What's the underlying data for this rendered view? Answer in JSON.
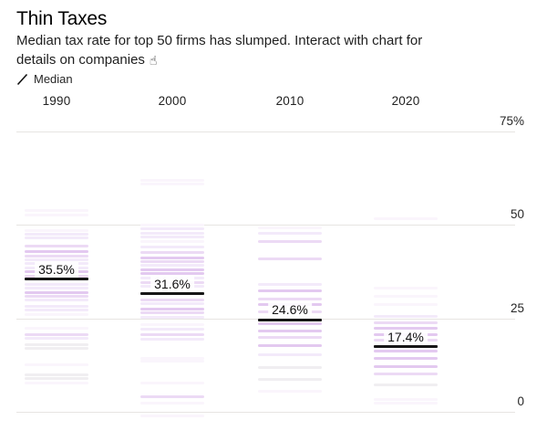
{
  "header": {
    "title": "Thin Taxes",
    "subtitle_line1": "Median tax rate for top 50 firms has slumped. Interact with chart for",
    "subtitle_line2": "details on companies",
    "pointer_icon_glyph": "☝"
  },
  "legend": {
    "symbol": "median-slash-icon",
    "label": "Median"
  },
  "chart_data": {
    "type": "strip",
    "title": "Thin Taxes",
    "subtitle": "Median tax rate for top 50 firms has slumped. Interact with chart for details on companies",
    "unit": "%",
    "ylim": [
      0,
      75
    ],
    "grid": true,
    "legend_position": "top-left",
    "axis_ticks": [
      {
        "label": "75%",
        "value": 75
      },
      {
        "label": "50",
        "value": 50
      },
      {
        "label": "25",
        "value": 25
      },
      {
        "label": "0",
        "value": 0
      }
    ],
    "columns": [
      {
        "year": "1990",
        "median": 35.5,
        "median_label": "35.5%",
        "strips": [
          [
            53.8,
            "faint"
          ],
          [
            52.6,
            "faint"
          ],
          [
            48.5,
            "faint"
          ],
          [
            47.6,
            "light"
          ],
          [
            46.6,
            "light"
          ],
          [
            44.4,
            "medium"
          ],
          [
            43.0,
            "strong"
          ],
          [
            41.7,
            "medium"
          ],
          [
            40.8,
            "light"
          ],
          [
            39.8,
            "light"
          ],
          [
            38.6,
            "light"
          ],
          [
            37.6,
            "strong"
          ],
          [
            36.4,
            "medium"
          ],
          [
            34.0,
            "light"
          ],
          [
            33.0,
            "light"
          ],
          [
            31.8,
            "strong"
          ],
          [
            30.8,
            "medium"
          ],
          [
            29.9,
            "light"
          ],
          [
            28.2,
            "light"
          ],
          [
            27.2,
            "light"
          ],
          [
            26.0,
            "faint"
          ],
          [
            22.3,
            "faint"
          ],
          [
            20.6,
            "medium"
          ],
          [
            19.7,
            "light"
          ],
          [
            18.0,
            "gray"
          ],
          [
            17.0,
            "gray"
          ],
          [
            12.6,
            "faint"
          ],
          [
            10.0,
            "gray"
          ],
          [
            9.0,
            "gray"
          ],
          [
            7.8,
            "faint"
          ]
        ]
      },
      {
        "year": "2000",
        "median": 31.6,
        "median_label": "31.6%",
        "strips": [
          [
            62.0,
            "faint"
          ],
          [
            60.9,
            "faint"
          ],
          [
            50.0,
            "faint"
          ],
          [
            49.0,
            "light"
          ],
          [
            47.8,
            "light"
          ],
          [
            46.8,
            "light"
          ],
          [
            45.6,
            "faint"
          ],
          [
            44.2,
            "light"
          ],
          [
            42.7,
            "medium"
          ],
          [
            41.3,
            "strong"
          ],
          [
            40.3,
            "medium"
          ],
          [
            39.3,
            "light"
          ],
          [
            38.1,
            "strong"
          ],
          [
            37.1,
            "strong"
          ],
          [
            35.9,
            "light"
          ],
          [
            34.7,
            "medium"
          ],
          [
            33.5,
            "light"
          ],
          [
            29.9,
            "medium"
          ],
          [
            28.9,
            "light"
          ],
          [
            27.4,
            "strong"
          ],
          [
            26.5,
            "medium"
          ],
          [
            25.2,
            "light"
          ],
          [
            23.3,
            "faint"
          ],
          [
            22.1,
            "light"
          ],
          [
            20.6,
            "medium"
          ],
          [
            19.4,
            "light"
          ],
          [
            14.3,
            "faint"
          ],
          [
            13.6,
            "faint"
          ],
          [
            7.8,
            "faint"
          ],
          [
            4.1,
            "medium"
          ],
          [
            2.4,
            "faint"
          ],
          [
            -1.0,
            "faint"
          ]
        ]
      },
      {
        "year": "2010",
        "median": 24.6,
        "median_label": "24.6%",
        "strips": [
          [
            49.3,
            "faint"
          ],
          [
            47.8,
            "light"
          ],
          [
            45.6,
            "medium"
          ],
          [
            41.0,
            "medium"
          ],
          [
            34.0,
            "light"
          ],
          [
            32.3,
            "strong"
          ],
          [
            30.3,
            "medium"
          ],
          [
            28.6,
            "strong"
          ],
          [
            26.7,
            "medium"
          ],
          [
            23.5,
            "strong"
          ],
          [
            21.6,
            "strong"
          ],
          [
            19.9,
            "medium"
          ],
          [
            17.7,
            "strong"
          ],
          [
            15.3,
            "light"
          ],
          [
            11.9,
            "gray"
          ],
          [
            8.7,
            "gray"
          ],
          [
            5.6,
            "faint"
          ]
        ]
      },
      {
        "year": "2020",
        "median": 17.4,
        "median_label": "17.4%",
        "strips": [
          [
            51.7,
            "faint"
          ],
          [
            33.0,
            "faint"
          ],
          [
            30.8,
            "faint"
          ],
          [
            28.6,
            "faint"
          ],
          [
            25.5,
            "light"
          ],
          [
            23.8,
            "medium"
          ],
          [
            22.3,
            "strong"
          ],
          [
            20.6,
            "strong"
          ],
          [
            19.2,
            "medium"
          ],
          [
            16.3,
            "strong"
          ],
          [
            14.3,
            "strong"
          ],
          [
            12.1,
            "strong"
          ],
          [
            10.2,
            "medium"
          ],
          [
            7.3,
            "gray"
          ],
          [
            3.2,
            "faint"
          ],
          [
            2.4,
            "faint"
          ]
        ]
      }
    ],
    "colors": {
      "strong": "#e3c9f0",
      "medium": "#ecdaf5",
      "light": "#f3eafa",
      "faint": "#faf5fc",
      "gray": "#f0eef1",
      "median_line": "#161616",
      "gridline": "#e7e5e2"
    }
  }
}
